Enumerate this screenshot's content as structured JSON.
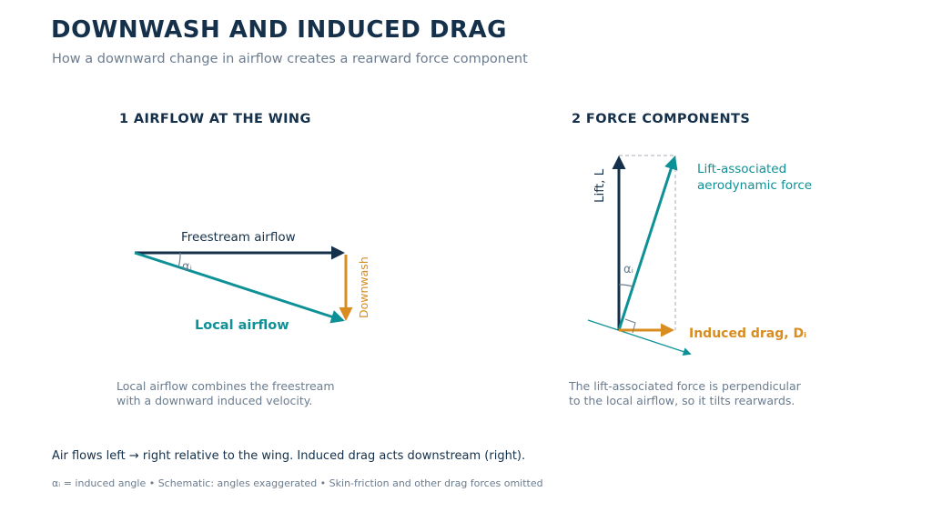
{
  "header": {
    "title": "DOWNWASH AND INDUCED DRAG",
    "subtitle": "How a downward change in airflow creates a rearward force component"
  },
  "panel1": {
    "heading": "1  AIRFLOW AT THE WING",
    "freestream_label": "Freestream airflow",
    "local_label": "Local airflow",
    "downwash_label": "Downwash",
    "angle_label": "αᵢ",
    "caption_line1": "Local airflow combines the freestream",
    "caption_line2": "with a downward induced velocity."
  },
  "panel2": {
    "heading": "2  FORCE COMPONENTS",
    "lift_label": "Lift, L",
    "force_label_line1": "Lift-associated",
    "force_label_line2": "aerodynamic force",
    "drag_label": "Induced drag, Dᵢ",
    "angle_label": "αᵢ",
    "caption_line1": "The lift-associated force is perpendicular",
    "caption_line2": "to the local airflow, so it tilts rearwards."
  },
  "footer": {
    "main": "Air flows left → right relative to the wing. Induced drag acts downstream (right).",
    "note": "αᵢ = induced angle • Schematic: angles exaggerated • Skin-friction and other drag forces omitted"
  },
  "colors": {
    "navy": "#14304a",
    "teal": "#0e9196",
    "orange": "#d98c1f",
    "gray": "#6b7c8f",
    "dashed": "#b8bec6"
  }
}
